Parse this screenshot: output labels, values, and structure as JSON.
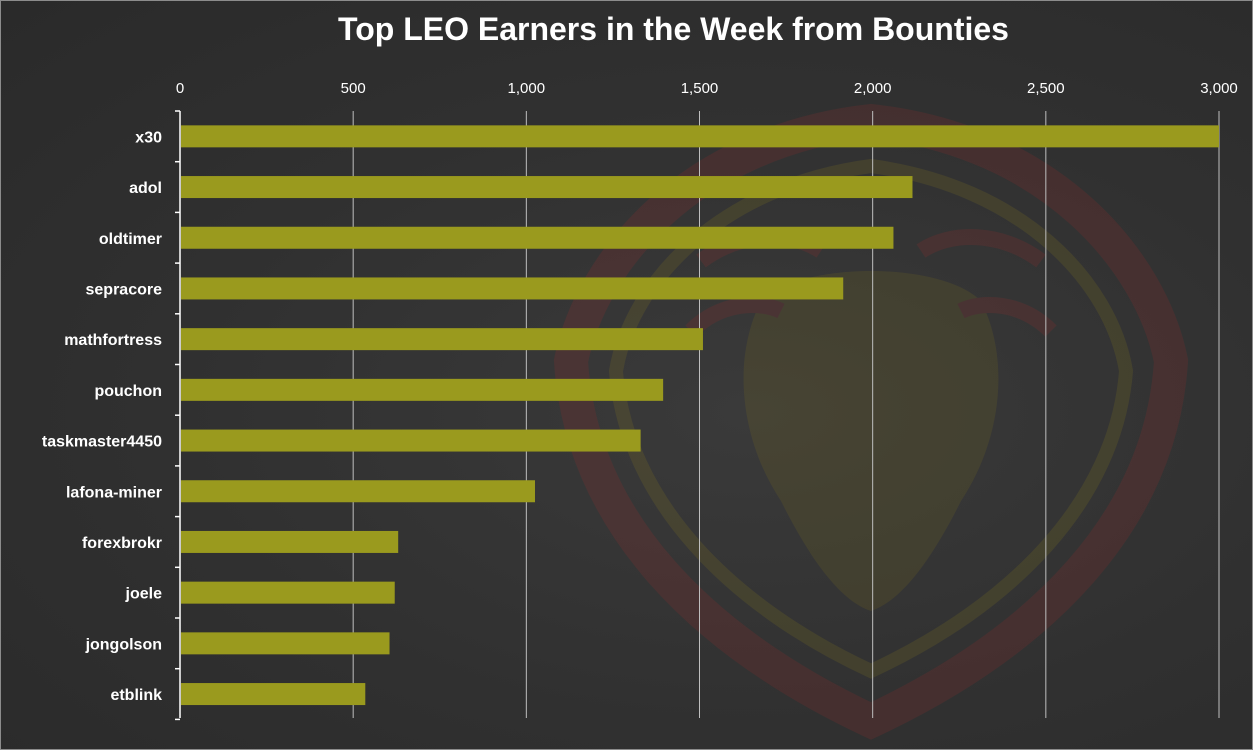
{
  "chart_data": {
    "type": "bar",
    "orientation": "horizontal",
    "title": "Top LEO Earners in the Week from Bounties",
    "categories": [
      "x30",
      "adol",
      "oldtimer",
      "sepracore",
      "mathfortress",
      "pouchon",
      "taskmaster4450",
      "lafona-miner",
      "forexbrokr",
      "joele",
      "jongolson",
      "etblink"
    ],
    "values": [
      3000,
      2115,
      2060,
      1915,
      1510,
      1395,
      1330,
      1025,
      630,
      620,
      605,
      535
    ],
    "xlim": [
      0,
      3000
    ],
    "x_ticks": [
      0,
      500,
      1000,
      1500,
      2000,
      2500,
      3000
    ],
    "x_tick_labels": [
      "0",
      "500",
      "1,000",
      "1,500",
      "2,000",
      "2,500",
      "3,000"
    ],
    "x_axis_position": "top",
    "grid": true,
    "legend": "none",
    "bar_color": "#9a9a1e",
    "gridline_color": "#bfbfbf",
    "background_color": "#2e2e2e",
    "watermark": "lion-logo"
  }
}
